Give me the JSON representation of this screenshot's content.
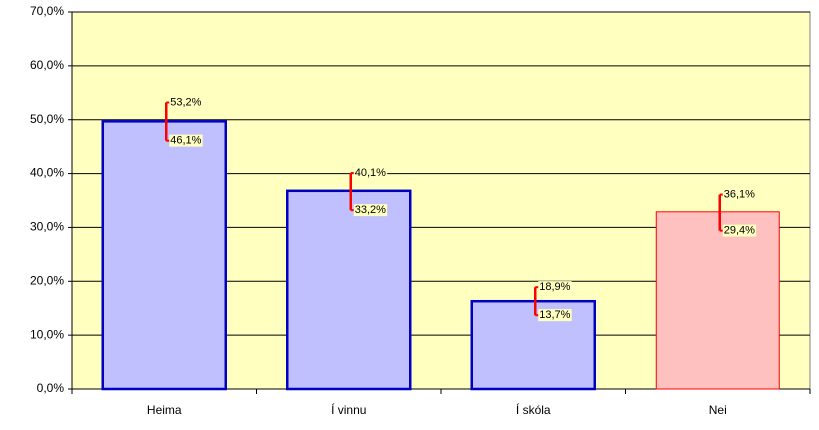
{
  "chart_data": {
    "type": "bar",
    "categories": [
      "Heima",
      "Í vinnu",
      "Í skóla",
      "Nei"
    ],
    "values": [
      49.7,
      36.8,
      16.3,
      32.9
    ],
    "colors": [
      "#c0c0ff",
      "#c0c0ff",
      "#c0c0ff",
      "#ffc0c0"
    ],
    "edge_colors": [
      "#0000c0",
      "#0000c0",
      "#0000c0",
      "#ff0000"
    ],
    "plot_background": "#ffffc0",
    "error_color": "#ff0000",
    "error_bars": {
      "high": {
        "values": [
          53.2,
          40.1,
          18.9,
          36.1
        ],
        "value_labels": [
          "53,2%",
          "40,1%",
          "18,9%",
          "36,1%"
        ]
      },
      "low": {
        "values": [
          46.1,
          33.2,
          13.7,
          29.4
        ],
        "value_labels": [
          "46,1%",
          "33,2%",
          "13,7%",
          "29,4%"
        ]
      }
    },
    "ylim": [
      0,
      70
    ],
    "yticks": [
      {
        "value": 0,
        "label": "0,0%"
      },
      {
        "value": 10,
        "label": "10,0%"
      },
      {
        "value": 20,
        "label": "20,0%"
      },
      {
        "value": 30,
        "label": "30,0%"
      },
      {
        "value": 40,
        "label": "40,0%"
      },
      {
        "value": 50,
        "label": "50,0%"
      },
      {
        "value": 60,
        "label": "60,0%"
      },
      {
        "value": 70,
        "label": "70,0%"
      }
    ],
    "grid": true
  }
}
